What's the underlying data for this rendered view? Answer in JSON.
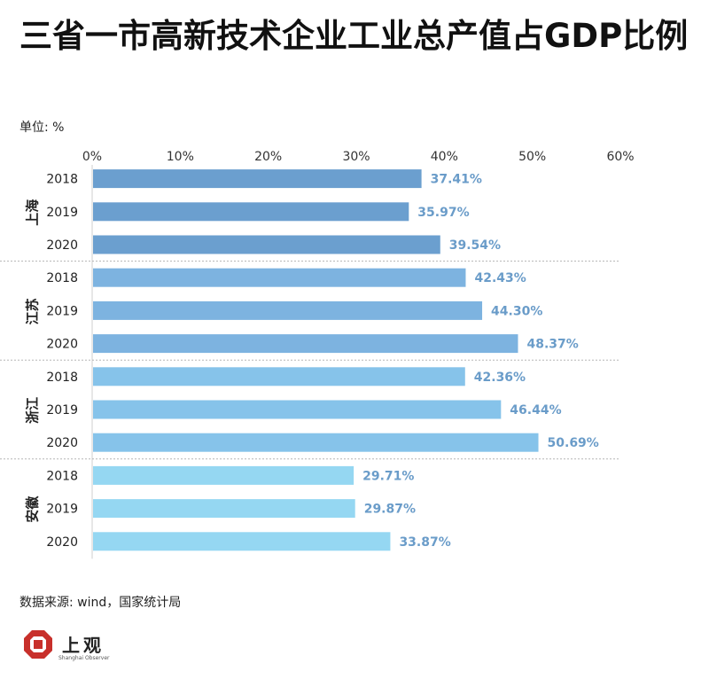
{
  "title": "三省一市高新技术企业工业总产值占GDP比例",
  "unit": "单位: %",
  "source": "数据来源: wind，国家统计局",
  "logo": {
    "name": "上观",
    "subtitle": "Shanghai Observer",
    "color": "#c8302b"
  },
  "colors": {
    "shanghai": "#6b9fcf",
    "jiangsu": "#7db3e0",
    "zhejiang": "#86c3ea",
    "anhui": "#95d7f2",
    "label": "#6a9cc9"
  },
  "chart_data": {
    "type": "bar",
    "orientation": "horizontal",
    "title": "三省一市高新技术企业工业总产值占GDP比例",
    "xlabel": "",
    "ylabel": "",
    "unit": "%",
    "xlim": [
      0,
      60
    ],
    "xticks": [
      0,
      10,
      20,
      30,
      40,
      50,
      60
    ],
    "tick_suffix": "%",
    "groups": [
      {
        "name": "上海",
        "color_key": "shanghai",
        "bars": [
          {
            "year": "2018",
            "value": 37.41
          },
          {
            "year": "2019",
            "value": 35.97
          },
          {
            "year": "2020",
            "value": 39.54
          }
        ]
      },
      {
        "name": "江苏",
        "color_key": "jiangsu",
        "bars": [
          {
            "year": "2018",
            "value": 42.43
          },
          {
            "year": "2019",
            "value": 44.3
          },
          {
            "year": "2020",
            "value": 48.37
          }
        ]
      },
      {
        "name": "浙江",
        "color_key": "zhejiang",
        "bars": [
          {
            "year": "2018",
            "value": 42.36
          },
          {
            "year": "2019",
            "value": 46.44
          },
          {
            "year": "2020",
            "value": 50.69
          }
        ]
      },
      {
        "name": "安徽",
        "color_key": "anhui",
        "bars": [
          {
            "year": "2018",
            "value": 29.71
          },
          {
            "year": "2019",
            "value": 29.87
          },
          {
            "year": "2020",
            "value": 33.87
          }
        ]
      }
    ]
  }
}
